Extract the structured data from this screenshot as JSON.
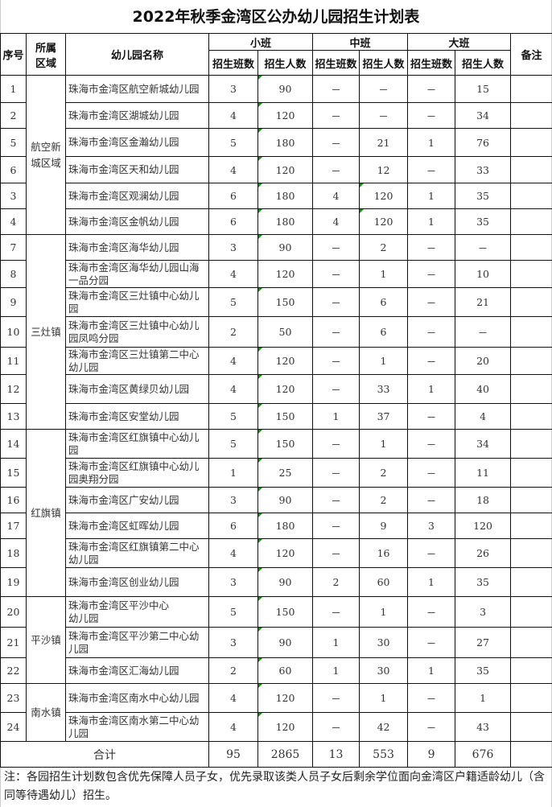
{
  "title": "2022年秋季金湾区公办幼儿园招生计划表",
  "headers": {
    "seq": "序号",
    "area": "所属区域",
    "name": "幼儿园名称",
    "small": "小班",
    "middle": "中班",
    "large": "大班",
    "remark": "备注",
    "classes": "招生班数",
    "students": "招生人数"
  },
  "groups": [
    {
      "area": "航空新城区域",
      "rows": [
        {
          "seq": "1",
          "name": "珠海市金湾区航空新城幼儿园",
          "sc": "3",
          "ss": "90",
          "mc": "－",
          "ms": "－",
          "lc": "－",
          "ls": "15"
        },
        {
          "seq": "2",
          "name": "珠海市金湾区湖城幼儿园",
          "sc": "4",
          "ss": "120",
          "mc": "－",
          "ms": "－",
          "lc": "－",
          "ls": "34"
        },
        {
          "seq": "5",
          "name": "珠海市金湾区金瀚幼儿园",
          "sc": "5",
          "ss": "180",
          "mc": "－",
          "ms": "21",
          "lc": "1",
          "ls": "76"
        },
        {
          "seq": "6",
          "name": "珠海市金湾区天和幼儿园",
          "sc": "4",
          "ss": "120",
          "mc": "－",
          "ms": "12",
          "lc": "－",
          "ls": "33"
        },
        {
          "seq": "3",
          "name": "珠海市金湾区观澜幼儿园",
          "sc": "6",
          "ss": "180",
          "mc": "4",
          "ms": "120",
          "lc": "1",
          "ls": "35"
        },
        {
          "seq": "4",
          "name": "珠海市金湾区金帆幼儿园",
          "sc": "6",
          "ss": "180",
          "mc": "4",
          "ms": "120",
          "lc": "1",
          "ls": "35"
        }
      ]
    },
    {
      "area": "三灶镇",
      "rows": [
        {
          "seq": "7",
          "name": "珠海市金湾区海华幼儿园",
          "sc": "3",
          "ss": "90",
          "mc": "－",
          "ms": "2",
          "lc": "－",
          "ls": "－"
        },
        {
          "seq": "8",
          "name": "珠海市金湾区海华幼儿园山海一品分园",
          "sc": "4",
          "ss": "120",
          "mc": "－",
          "ms": "1",
          "lc": "－",
          "ls": "10"
        },
        {
          "seq": "9",
          "name": "珠海市金湾区三灶镇中心幼儿园",
          "sc": "5",
          "ss": "150",
          "mc": "－",
          "ms": "6",
          "lc": "－",
          "ls": "21"
        },
        {
          "seq": "10",
          "name": "珠海市金湾区三灶镇中心幼儿园凤鸣分园",
          "sc": "2",
          "ss": "50",
          "mc": "－",
          "ms": "6",
          "lc": "－",
          "ls": "－"
        },
        {
          "seq": "11",
          "name": "珠海市金湾区三灶镇第二中心幼儿园",
          "sc": "4",
          "ss": "120",
          "mc": "－",
          "ms": "1",
          "lc": "－",
          "ls": "20"
        },
        {
          "seq": "12",
          "name": "珠海市金湾区黄绿贝幼儿园",
          "sc": "4",
          "ss": "120",
          "mc": "－",
          "ms": "33",
          "lc": "1",
          "ls": "40"
        },
        {
          "seq": "13",
          "name": "珠海市金湾区安堂幼儿园",
          "sc": "5",
          "ss": "150",
          "mc": "1",
          "ms": "37",
          "lc": "－",
          "ls": "4"
        }
      ]
    },
    {
      "area": "红旗镇",
      "rows": [
        {
          "seq": "14",
          "name": "珠海市金湾区红旗镇中心幼儿园",
          "sc": "5",
          "ss": "150",
          "mc": "－",
          "ms": "1",
          "lc": "－",
          "ls": "34"
        },
        {
          "seq": "15",
          "name": "珠海市金湾区红旗镇中心幼儿园奥翔分园",
          "sc": "1",
          "ss": "25",
          "mc": "－",
          "ms": "2",
          "lc": "－",
          "ls": "11"
        },
        {
          "seq": "16",
          "name": "珠海市金湾区广安幼儿园",
          "sc": "3",
          "ss": "90",
          "mc": "－",
          "ms": "2",
          "lc": "－",
          "ls": "18"
        },
        {
          "seq": "17",
          "name": "珠海市金湾区虹晖幼儿园",
          "sc": "6",
          "ss": "180",
          "mc": "－",
          "ms": "9",
          "lc": "3",
          "ls": "120"
        },
        {
          "seq": "18",
          "name": "珠海市金湾区红旗镇第二中心幼儿园",
          "sc": "4",
          "ss": "120",
          "mc": "－",
          "ms": "16",
          "lc": "－",
          "ls": "26"
        },
        {
          "seq": "19",
          "name": "珠海市金湾区创业幼儿园",
          "sc": "3",
          "ss": "90",
          "mc": "2",
          "ms": "60",
          "lc": "1",
          "ls": "35"
        }
      ]
    },
    {
      "area": "平沙镇",
      "rows": [
        {
          "seq": "20",
          "name": "珠海市金湾区平沙中心\n幼儿园",
          "sc": "5",
          "ss": "150",
          "mc": "－",
          "ms": "1",
          "lc": "－",
          "ls": "3"
        },
        {
          "seq": "21",
          "name": "珠海市金湾区平沙第二中心幼儿园",
          "sc": "3",
          "ss": "90",
          "mc": "1",
          "ms": "30",
          "lc": "－",
          "ls": "27"
        },
        {
          "seq": "22",
          "name": "珠海市金湾区汇海幼儿园",
          "sc": "2",
          "ss": "60",
          "mc": "1",
          "ms": "30",
          "lc": "1",
          "ls": "35"
        }
      ]
    },
    {
      "area": "南水镇",
      "rows": [
        {
          "seq": "23",
          "name": "珠海市金湾区南水中心幼儿园",
          "sc": "4",
          "ss": "120",
          "mc": "－",
          "ms": "1",
          "lc": "－",
          "ls": "1"
        },
        {
          "seq": "24",
          "name": "珠海市金湾区南水第二中心幼儿园",
          "sc": "4",
          "ss": "120",
          "mc": "－",
          "ms": "42",
          "lc": "－",
          "ls": "43"
        }
      ]
    }
  ],
  "total": {
    "label": "合计",
    "sc": "95",
    "ss": "2865",
    "mc": "13",
    "ms": "553",
    "lc": "9",
    "ls": "676"
  },
  "note": "注：各园招生计划数包含优先保障人员子女，优先录取该类人员子女后剩余学位面向金湾区户籍适龄幼儿（含同等待遇幼儿）招生。",
  "colors": {
    "marker": "#1a8a1a"
  }
}
